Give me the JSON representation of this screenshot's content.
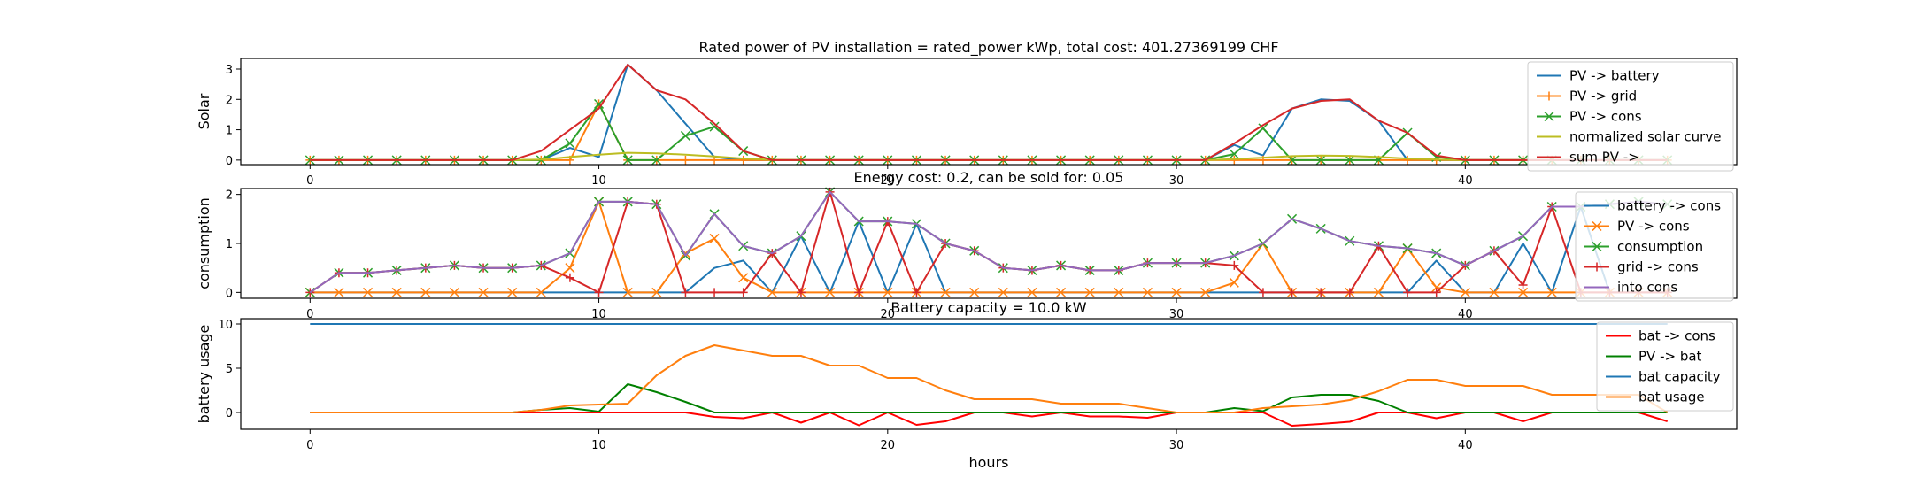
{
  "chart_data": [
    {
      "type": "line",
      "title": "Rated power of PV installation = rated_power kWp, total cost: 401.27369199 CHF",
      "xlabel": "",
      "ylabel": "Solar",
      "xlim": [
        -2.4,
        49.4
      ],
      "ylim": [
        -0.15,
        3.35
      ],
      "xticks": [
        0,
        10,
        20,
        30,
        40
      ],
      "yticks": [
        0,
        1,
        2,
        3
      ],
      "legend": "top-right",
      "series": [
        {
          "name": "PV -> battery",
          "color": "#1f77b4",
          "marker": "none",
          "values": [
            0,
            0,
            0,
            0,
            0,
            0,
            0,
            0,
            0,
            0.4,
            0.1,
            3.15,
            2.3,
            1.2,
            0.1,
            0,
            0,
            0,
            0,
            0,
            0,
            0,
            0,
            0,
            0,
            0,
            0,
            0,
            0,
            0,
            0,
            0,
            0.5,
            0.15,
            1.7,
            2.0,
            1.95,
            1.3,
            0,
            0,
            0,
            0,
            0,
            0,
            0,
            0,
            0,
            0
          ]
        },
        {
          "name": "PV -> grid",
          "color": "#ff7f0e",
          "marker": "plus",
          "values": [
            0,
            0,
            0,
            0,
            0,
            0,
            0,
            0,
            0,
            0,
            1.85,
            0,
            0,
            0,
            0,
            0,
            0,
            0,
            0,
            0,
            0,
            0,
            0,
            0,
            0,
            0,
            0,
            0,
            0,
            0,
            0,
            0,
            0,
            0,
            0,
            0,
            0,
            0,
            0,
            0,
            0,
            0,
            0,
            0,
            0,
            0,
            0,
            0
          ]
        },
        {
          "name": "PV -> cons",
          "color": "#2ca02c",
          "marker": "x",
          "values": [
            0,
            0,
            0,
            0,
            0,
            0,
            0,
            0,
            0,
            0.55,
            1.85,
            0,
            0,
            0.8,
            1.1,
            0.3,
            0,
            0,
            0,
            0,
            0,
            0,
            0,
            0,
            0,
            0,
            0,
            0,
            0,
            0,
            0,
            0,
            0.2,
            1.05,
            0,
            0,
            0,
            0,
            0.9,
            0.1,
            0,
            0,
            0,
            0,
            0,
            0,
            0,
            0
          ]
        },
        {
          "name": "normalized solar curve",
          "color": "#bcbd22",
          "marker": "none",
          "values": [
            0,
            0,
            0,
            0,
            0,
            0,
            0,
            0,
            0.02,
            0.1,
            0.18,
            0.24,
            0.22,
            0.18,
            0.12,
            0.05,
            0.01,
            0,
            0,
            0,
            0,
            0,
            0,
            0,
            0,
            0,
            0,
            0,
            0,
            0,
            0,
            0,
            0.03,
            0.08,
            0.13,
            0.15,
            0.14,
            0.1,
            0.05,
            0.02,
            0,
            0,
            0,
            0,
            0,
            0,
            0,
            0
          ]
        },
        {
          "name": "sum PV ->",
          "color": "#d62728",
          "marker": "none",
          "values": [
            0,
            0,
            0,
            0,
            0,
            0,
            0,
            0,
            0.3,
            1.0,
            1.7,
            3.15,
            2.3,
            2.0,
            1.2,
            0.3,
            0,
            0,
            0,
            0,
            0,
            0,
            0,
            0,
            0,
            0,
            0,
            0,
            0,
            0,
            0,
            0,
            0.55,
            1.15,
            1.7,
            1.95,
            2.0,
            1.3,
            0.9,
            0.15,
            0,
            0,
            0,
            0,
            0,
            0,
            0,
            0
          ]
        }
      ]
    },
    {
      "type": "line",
      "title": "Energy cost: 0.2, can be sold for: 0.05",
      "xlabel": "",
      "ylabel": "consumption",
      "xlim": [
        -2.4,
        49.4
      ],
      "ylim": [
        -0.12,
        2.12
      ],
      "xticks": [
        0,
        10,
        20,
        30,
        40
      ],
      "yticks": [
        0,
        1,
        2
      ],
      "legend": "top-right",
      "series": [
        {
          "name": "battery -> cons",
          "color": "#1f77b4",
          "marker": "none",
          "values": [
            0,
            0,
            0,
            0,
            0,
            0,
            0,
            0,
            0,
            0,
            0,
            0,
            0,
            0,
            0.5,
            0.65,
            0,
            1.15,
            0,
            1.45,
            0,
            1.4,
            0,
            0,
            0,
            0,
            0,
            0,
            0,
            0,
            0,
            0,
            0,
            0,
            0,
            0,
            0,
            0,
            0,
            0.65,
            0,
            0,
            1.0,
            0,
            1.75,
            0,
            0,
            0
          ]
        },
        {
          "name": "PV -> cons",
          "color": "#ff7f0e",
          "marker": "x",
          "values": [
            0,
            0,
            0,
            0,
            0,
            0,
            0,
            0,
            0,
            0.5,
            1.85,
            0,
            0,
            0.8,
            1.1,
            0.3,
            0,
            0,
            0,
            0,
            0,
            0,
            0,
            0,
            0,
            0,
            0,
            0,
            0,
            0,
            0,
            0,
            0.2,
            1.0,
            0,
            0,
            0,
            0,
            0.9,
            0.1,
            0,
            0,
            0,
            0,
            0,
            0,
            0,
            0
          ]
        },
        {
          "name": "consumption",
          "color": "#2ca02c",
          "marker": "x",
          "values": [
            0,
            0.4,
            0.4,
            0.45,
            0.5,
            0.55,
            0.5,
            0.5,
            0.55,
            0.8,
            1.85,
            1.85,
            1.8,
            0.75,
            1.6,
            0.95,
            0.8,
            1.15,
            2.05,
            1.45,
            1.45,
            1.4,
            1.0,
            0.85,
            0.5,
            0.45,
            0.55,
            0.45,
            0.45,
            0.6,
            0.6,
            0.6,
            0.75,
            1.0,
            1.5,
            1.3,
            1.05,
            0.95,
            0.9,
            0.8,
            0.55,
            0.85,
            1.15,
            1.75,
            1.75,
            1.8,
            1.85,
            1.8
          ]
        },
        {
          "name": "grid -> cons",
          "color": "#d62728",
          "marker": "plus",
          "values": [
            0,
            0.4,
            0.4,
            0.45,
            0.5,
            0.55,
            0.5,
            0.5,
            0.55,
            0.3,
            0,
            1.85,
            1.8,
            0,
            0,
            0,
            0.8,
            0,
            2.05,
            0,
            1.45,
            0,
            1.0,
            0.85,
            0.5,
            0.45,
            0.55,
            0.45,
            0.45,
            0.6,
            0.6,
            0.6,
            0.55,
            0,
            0,
            0,
            0,
            0.95,
            0,
            0,
            0.55,
            0.85,
            0.15,
            1.75,
            0,
            0,
            0,
            0
          ]
        },
        {
          "name": "into cons",
          "color": "#9467bd",
          "marker": "none",
          "values": [
            0,
            0.4,
            0.4,
            0.45,
            0.5,
            0.55,
            0.5,
            0.5,
            0.55,
            0.8,
            1.85,
            1.85,
            1.8,
            0.75,
            1.6,
            0.95,
            0.8,
            1.15,
            2.05,
            1.45,
            1.45,
            1.4,
            1.0,
            0.85,
            0.5,
            0.45,
            0.55,
            0.45,
            0.45,
            0.6,
            0.6,
            0.6,
            0.75,
            1.0,
            1.5,
            1.3,
            1.05,
            0.95,
            0.9,
            0.8,
            0.55,
            0.85,
            1.15,
            1.75,
            1.75,
            1.8,
            1.85,
            1.8
          ]
        }
      ]
    },
    {
      "type": "line",
      "title": "Battery capacity = 10.0 kW",
      "xlabel": "hours",
      "ylabel": "battery usage",
      "xlim": [
        -2.4,
        49.4
      ],
      "ylim": [
        -1.9,
        10.6
      ],
      "xticks": [
        0,
        10,
        20,
        30,
        40
      ],
      "yticks": [
        0,
        5,
        10
      ],
      "legend": "top-right",
      "series": [
        {
          "name": "bat -> cons",
          "color": "#ff0000",
          "marker": "none",
          "values": [
            0,
            0,
            0,
            0,
            0,
            0,
            0,
            0,
            0,
            0,
            0,
            0,
            0,
            0,
            -0.5,
            -0.65,
            0,
            -1.15,
            0,
            -1.45,
            0,
            -1.4,
            -1.0,
            0,
            0,
            -0.45,
            0,
            -0.45,
            -0.45,
            -0.6,
            0,
            0,
            0,
            0,
            -1.5,
            -1.3,
            -1.05,
            0,
            0,
            -0.65,
            0,
            0,
            -1.0,
            0,
            0,
            0,
            0,
            -1.0
          ]
        },
        {
          "name": "PV -> bat",
          "color": "#008000",
          "marker": "none",
          "values": [
            0,
            0,
            0,
            0,
            0,
            0,
            0,
            0,
            0.3,
            0.5,
            0.1,
            3.2,
            2.3,
            1.2,
            0,
            0,
            0,
            0,
            0,
            0,
            0,
            0,
            0,
            0,
            0,
            0,
            0,
            0,
            0,
            0,
            0,
            0,
            0.5,
            0.15,
            1.7,
            2.0,
            2.0,
            1.3,
            0,
            0,
            0,
            0,
            0,
            0,
            0,
            0,
            0,
            0
          ]
        },
        {
          "name": "bat capacity",
          "color": "#1f77b4",
          "marker": "none",
          "values": [
            10,
            10,
            10,
            10,
            10,
            10,
            10,
            10,
            10,
            10,
            10,
            10,
            10,
            10,
            10,
            10,
            10,
            10,
            10,
            10,
            10,
            10,
            10,
            10,
            10,
            10,
            10,
            10,
            10,
            10,
            10,
            10,
            10,
            10,
            10,
            10,
            10,
            10,
            10,
            10,
            10,
            10,
            10,
            10,
            10,
            10,
            10,
            10
          ]
        },
        {
          "name": "bat usage",
          "color": "#ff7f0e",
          "marker": "none",
          "values": [
            0,
            0,
            0,
            0,
            0,
            0,
            0,
            0,
            0.3,
            0.8,
            0.9,
            1.0,
            4.2,
            6.4,
            7.6,
            7.0,
            6.4,
            6.4,
            5.3,
            5.3,
            3.9,
            3.9,
            2.5,
            1.5,
            1.5,
            1.5,
            1.0,
            1.0,
            1.0,
            0.5,
            0,
            0,
            0,
            0.5,
            0.7,
            0.9,
            1.4,
            2.4,
            3.7,
            3.7,
            3.0,
            3.0,
            3.0,
            2.0,
            2.0,
            2.0,
            2.0,
            0
          ]
        }
      ]
    }
  ]
}
